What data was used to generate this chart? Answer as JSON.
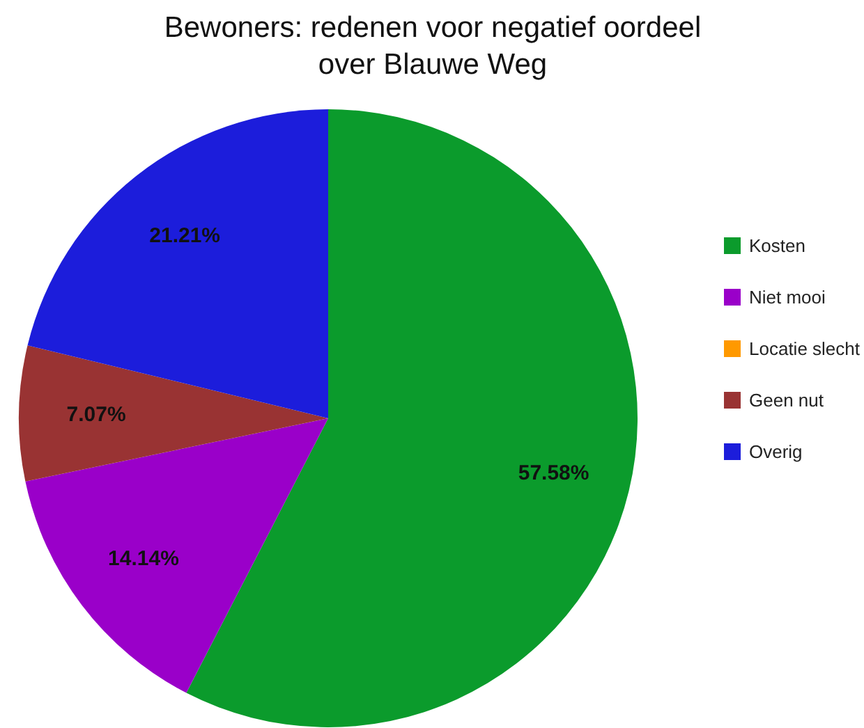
{
  "chart_data": {
    "type": "pie",
    "title": "Bewoners: redenen voor negatief oordeel\nover Blauwe Weg",
    "categories": [
      "Kosten",
      "Niet mooi",
      "Locatie slecht",
      "Geen nut",
      "Overig"
    ],
    "values": [
      57.58,
      14.14,
      0,
      7.07,
      21.21
    ],
    "colors": [
      "#0b9b2c",
      "#9a00c9",
      "#ff9900",
      "#993333",
      "#1c1ddb"
    ],
    "value_labels": [
      "57.58%",
      "14.14%",
      null,
      "7.07%",
      "21.21%"
    ],
    "legend": "right"
  }
}
